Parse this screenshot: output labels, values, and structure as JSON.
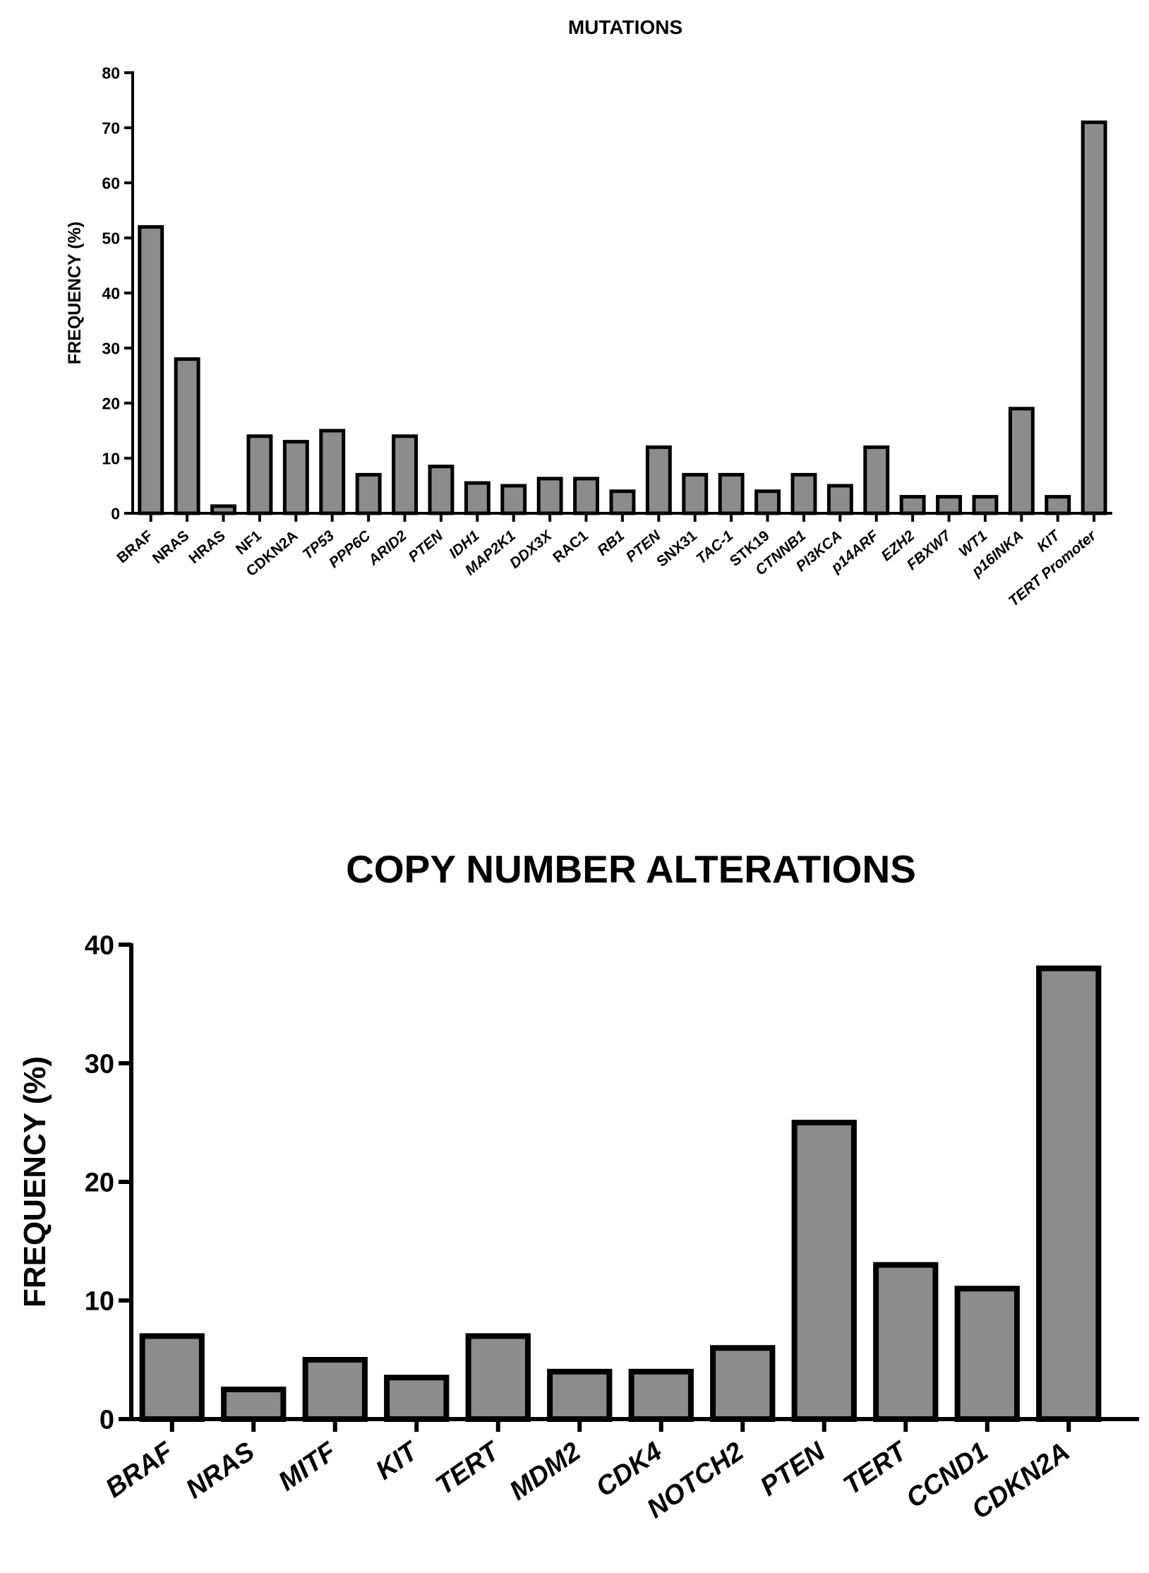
{
  "colors": {
    "bar_fill": "#8c8c8c",
    "bar_stroke": "#000000",
    "axis": "#000000"
  },
  "chart_data": [
    {
      "type": "bar",
      "title": "MUTATIONS",
      "xlabel": "",
      "ylabel": "FREQUENCY (%)",
      "ylim": [
        0,
        80
      ],
      "yticks": [
        0,
        10,
        20,
        30,
        40,
        50,
        60,
        70,
        80
      ],
      "grid": false,
      "legend": "none",
      "categories": [
        "BRAF",
        "NRAS",
        "HRAS",
        "NF1",
        "CDKN2A",
        "TP53",
        "PPP6C",
        "ARID2",
        "PTEN",
        "IDH1",
        "MAP2K1",
        "DDX3X",
        "RAC1",
        "RB1",
        "PTEN",
        "SNX31",
        "TAC-1",
        "STK19",
        "CTNNB1",
        "PI3KCA",
        "p14ARF",
        "EZH2",
        "FBXW7",
        "WT1",
        "p16INKA",
        "KIT",
        "TERT Promoter"
      ],
      "italic_categories": [
        false,
        false,
        false,
        false,
        false,
        true,
        true,
        true,
        true,
        true,
        true,
        true,
        false,
        true,
        true,
        false,
        true,
        false,
        true,
        true,
        true,
        true,
        true,
        true,
        true,
        true,
        true
      ],
      "values": [
        52,
        28,
        1.3,
        14,
        13,
        15,
        7,
        14,
        8.5,
        5.5,
        5,
        6.3,
        6.3,
        4,
        12,
        7,
        7,
        4,
        7,
        5,
        12,
        3,
        3,
        3,
        19,
        3,
        71
      ]
    },
    {
      "type": "bar",
      "title": "COPY NUMBER ALTERATIONS",
      "xlabel": "",
      "ylabel": "FREQUENCY (%)",
      "ylim": [
        0,
        40
      ],
      "yticks": [
        0,
        10,
        20,
        30,
        40
      ],
      "grid": false,
      "legend": "none",
      "categories": [
        "BRAF",
        "NRAS",
        "MITF",
        "KIT",
        "TERT",
        "MDM2",
        "CDK4",
        "NOTCH2",
        "PTEN",
        "TERT",
        "CCND1",
        "CDKN2A"
      ],
      "italic_categories": [
        true,
        true,
        true,
        true,
        true,
        true,
        true,
        true,
        true,
        true,
        true,
        true
      ],
      "values": [
        7,
        2.5,
        5,
        3.5,
        7,
        4,
        4,
        6,
        25,
        13,
        11,
        38
      ]
    }
  ]
}
